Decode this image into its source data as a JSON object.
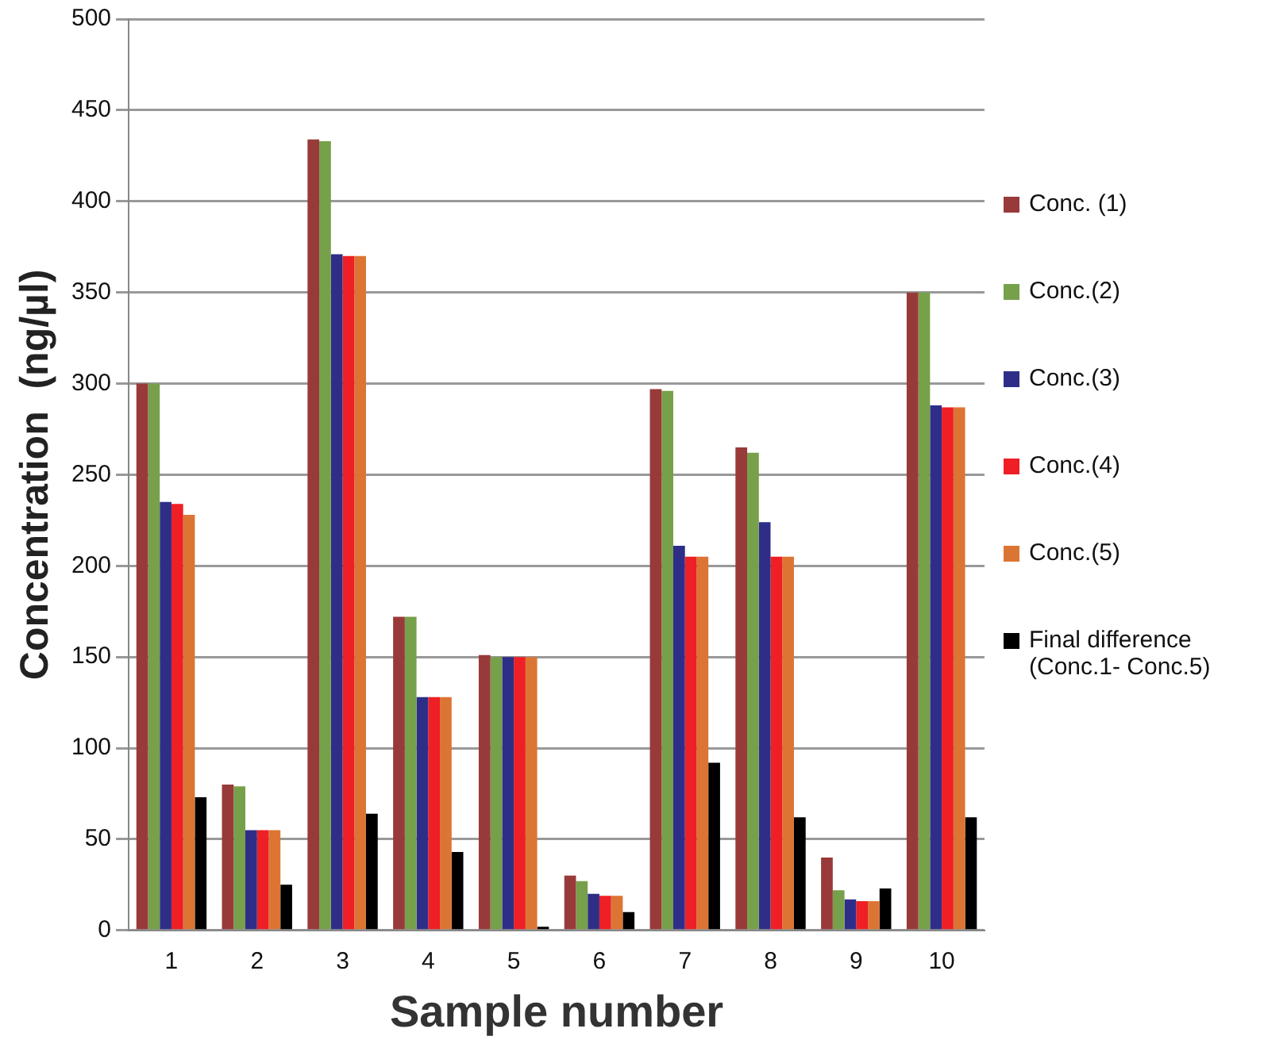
{
  "chart_data": {
    "type": "bar",
    "xlabel": "Sample number",
    "ylabel": "Concentration  (ng/µl)",
    "categories": [
      "1",
      "2",
      "3",
      "4",
      "5",
      "6",
      "7",
      "8",
      "9",
      "10"
    ],
    "series": [
      {
        "name": "Conc. (1)",
        "color": "#993a3a",
        "values": [
          300,
          80,
          434,
          172,
          151,
          30,
          297,
          265,
          40,
          350
        ]
      },
      {
        "name": "Conc.(2)",
        "color": "#76a04a",
        "values": [
          300,
          79,
          433,
          172,
          150,
          27,
          296,
          262,
          22,
          350
        ]
      },
      {
        "name": "Conc.(3)",
        "color": "#2e2e88",
        "values": [
          235,
          55,
          371,
          128,
          150,
          20,
          211,
          224,
          17,
          288
        ]
      },
      {
        "name": "Conc.(4)",
        "color": "#ee1f25",
        "values": [
          234,
          55,
          370,
          128,
          150,
          19,
          205,
          205,
          16,
          287
        ]
      },
      {
        "name": "Conc.(5)",
        "color": "#dc7533",
        "values": [
          228,
          55,
          370,
          128,
          150,
          19,
          205,
          205,
          16,
          287
        ]
      },
      {
        "name": "Final difference (Conc.1- Conc.5)",
        "color": "#000000",
        "values": [
          73,
          25,
          64,
          43,
          2,
          10,
          92,
          62,
          23,
          62
        ]
      }
    ],
    "ylim": [
      0,
      500
    ],
    "yticks": [
      0,
      50,
      100,
      150,
      200,
      250,
      300,
      350,
      400,
      450,
      500
    ],
    "grid": "y",
    "legend": "right"
  }
}
